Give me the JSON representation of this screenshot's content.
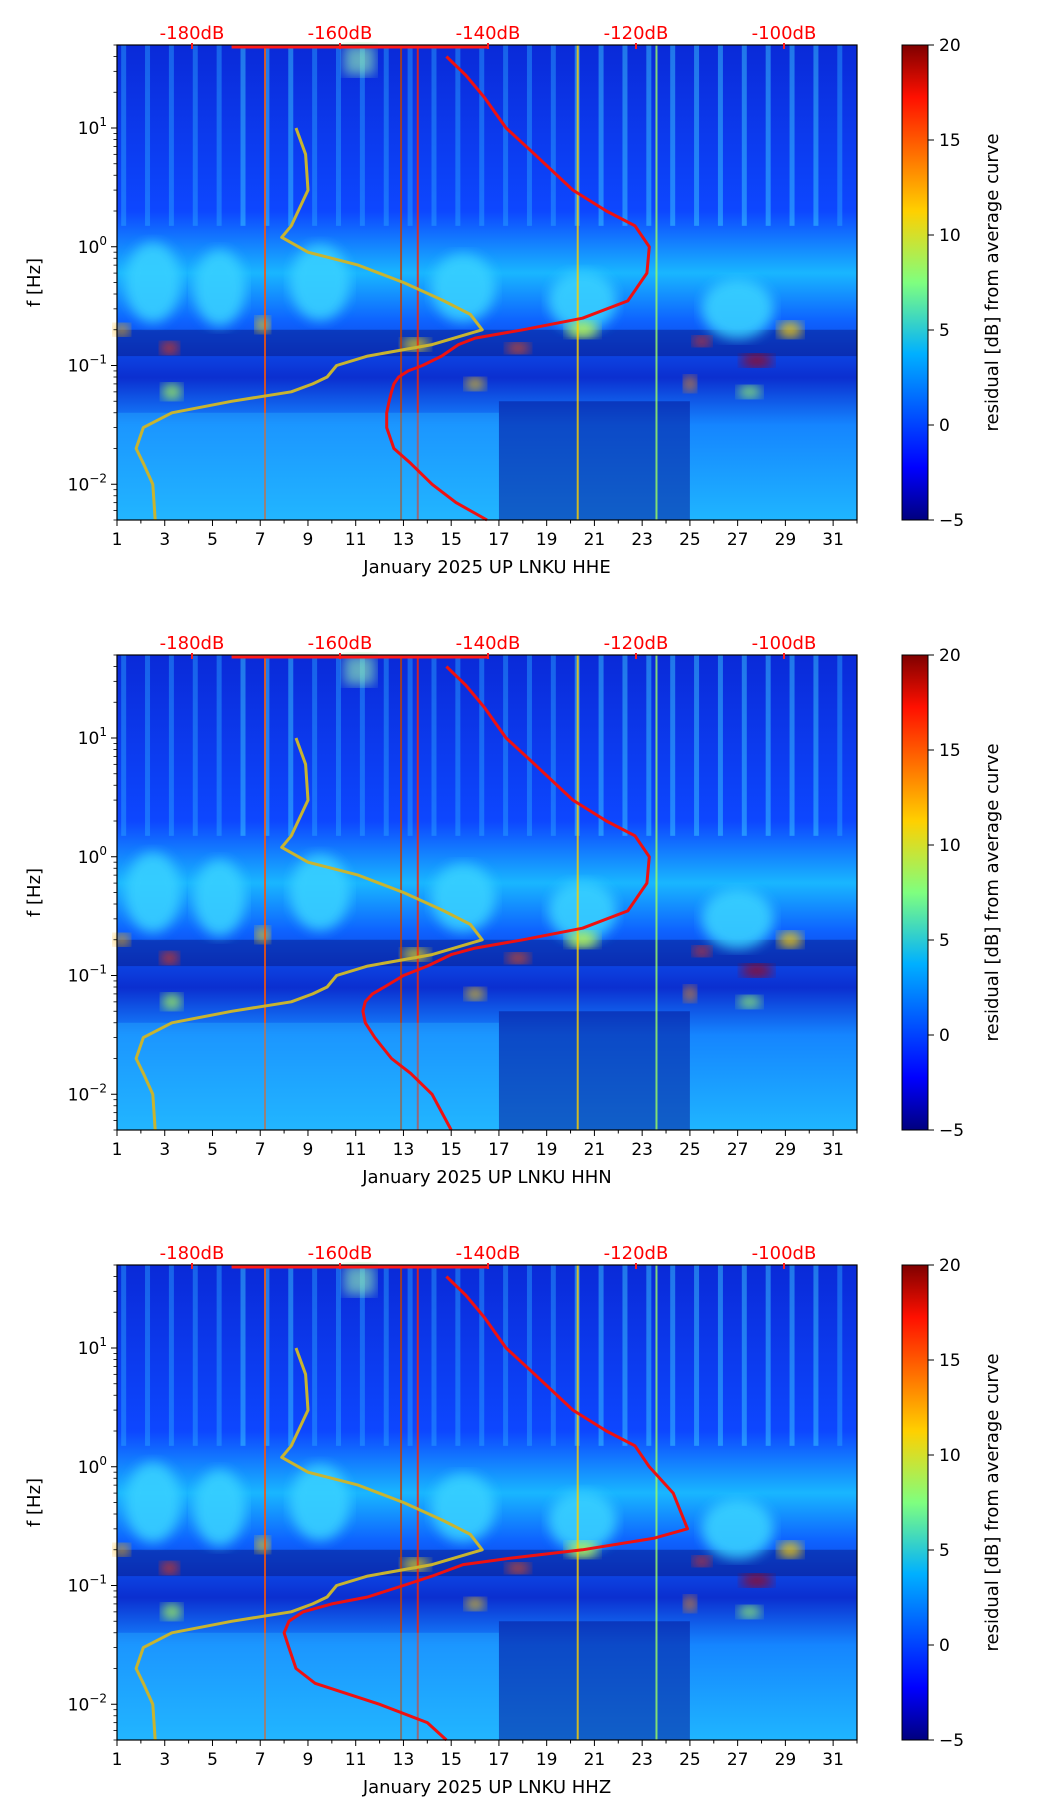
{
  "chart_data": [
    {
      "type": "heatmap",
      "title": "",
      "xlabel": "January 2025 UP LNKU  HHE",
      "ylabel": "f [Hz]",
      "x_ticks": [
        "1",
        "3",
        "5",
        "7",
        "9",
        "11",
        "13",
        "15",
        "17",
        "19",
        "21",
        "23",
        "25",
        "27",
        "29",
        "31"
      ],
      "x_range": [
        1,
        32
      ],
      "y_range_hz": [
        0.005,
        50
      ],
      "y_ticks": [
        {
          "exp": "1",
          "value": 10
        },
        {
          "exp": "0",
          "value": 1
        },
        {
          "exp": "−1",
          "value": 0.1
        },
        {
          "exp": "−2",
          "value": 0.01
        }
      ],
      "top_db_labels": [
        "-180dB",
        "-160dB",
        "-140dB",
        "-120dB",
        "-100dB"
      ],
      "colorbar": {
        "label": "residual [dB] from average curve",
        "ticks": [
          "20",
          "15",
          "10",
          "5",
          "0",
          "−5"
        ],
        "range": [
          -5,
          20
        ]
      },
      "series": [
        {
          "name": "average noise curve (red)",
          "x": [
            14.8,
            15.6,
            16.4,
            17.3,
            18.5,
            20.1,
            21.5,
            22.7,
            23.3,
            23.2,
            22.4,
            20.5,
            18.0,
            16.0,
            15.3,
            14.6,
            13.8,
            13.2,
            12.8,
            12.6,
            12.5,
            12.4,
            12.3,
            12.3,
            12.6,
            13.3,
            14.2,
            15.2,
            16.5
          ],
          "y_hz": [
            40,
            28,
            18,
            10,
            6,
            3,
            2,
            1.5,
            1,
            0.6,
            0.35,
            0.25,
            0.2,
            0.17,
            0.15,
            0.12,
            0.1,
            0.09,
            0.08,
            0.07,
            0.06,
            0.05,
            0.04,
            0.03,
            0.02,
            0.015,
            0.01,
            0.007,
            0.005
          ]
        },
        {
          "name": "noise model curve (yellow)",
          "x": [
            8.5,
            8.9,
            9.0,
            8.3,
            7.9,
            9.0,
            11.1,
            13.0,
            14.7,
            15.8,
            16.3,
            14.2,
            11.5,
            10.2,
            9.8,
            9.2,
            8.3,
            5.8,
            3.3,
            2.1,
            1.8,
            2.1,
            2.5,
            2.6
          ],
          "y_hz": [
            10,
            6,
            3,
            1.5,
            1.2,
            0.9,
            0.7,
            0.5,
            0.35,
            0.27,
            0.2,
            0.15,
            0.12,
            0.1,
            0.08,
            0.07,
            0.06,
            0.05,
            0.04,
            0.03,
            0.02,
            0.015,
            0.01,
            0.005
          ]
        }
      ]
    },
    {
      "type": "heatmap",
      "title": "",
      "xlabel": "January 2025 UP LNKU  HHN",
      "ylabel": "f [Hz]",
      "x_ticks": [
        "1",
        "3",
        "5",
        "7",
        "9",
        "11",
        "13",
        "15",
        "17",
        "19",
        "21",
        "23",
        "25",
        "27",
        "29",
        "31"
      ],
      "x_range": [
        1,
        32
      ],
      "y_range_hz": [
        0.005,
        50
      ],
      "y_ticks": [
        {
          "exp": "1",
          "value": 10
        },
        {
          "exp": "0",
          "value": 1
        },
        {
          "exp": "−1",
          "value": 0.1
        },
        {
          "exp": "−2",
          "value": 0.01
        }
      ],
      "top_db_labels": [
        "-180dB",
        "-160dB",
        "-140dB",
        "-120dB",
        "-100dB"
      ],
      "colorbar": {
        "label": "residual [dB] from average curve",
        "ticks": [
          "20",
          "15",
          "10",
          "5",
          "0",
          "−5"
        ],
        "range": [
          -5,
          20
        ]
      },
      "series": [
        {
          "name": "average noise curve (red)",
          "x": [
            14.8,
            15.6,
            16.4,
            17.3,
            18.5,
            20.1,
            21.5,
            22.7,
            23.3,
            23.2,
            22.4,
            20.5,
            18.0,
            16.0,
            15.0,
            14.0,
            13.0,
            12.2,
            11.7,
            11.4,
            11.3,
            11.4,
            11.8,
            12.5,
            13.3,
            14.2,
            15.0
          ],
          "y_hz": [
            40,
            28,
            18,
            10,
            6,
            3,
            2,
            1.5,
            1,
            0.6,
            0.35,
            0.25,
            0.2,
            0.17,
            0.15,
            0.12,
            0.1,
            0.08,
            0.07,
            0.06,
            0.05,
            0.04,
            0.03,
            0.02,
            0.015,
            0.01,
            0.005
          ]
        },
        {
          "name": "noise model curve (yellow)",
          "x": [
            8.5,
            8.9,
            9.0,
            8.3,
            7.9,
            9.0,
            11.1,
            13.0,
            14.7,
            15.8,
            16.3,
            14.2,
            11.5,
            10.2,
            9.8,
            9.2,
            8.3,
            5.8,
            3.3,
            2.1,
            1.8,
            2.1,
            2.5,
            2.6
          ],
          "y_hz": [
            10,
            6,
            3,
            1.5,
            1.2,
            0.9,
            0.7,
            0.5,
            0.35,
            0.27,
            0.2,
            0.15,
            0.12,
            0.1,
            0.08,
            0.07,
            0.06,
            0.05,
            0.04,
            0.03,
            0.02,
            0.015,
            0.01,
            0.005
          ]
        }
      ]
    },
    {
      "type": "heatmap",
      "title": "",
      "xlabel": "January 2025 UP LNKU  HHZ",
      "ylabel": "f [Hz]",
      "x_ticks": [
        "1",
        "3",
        "5",
        "7",
        "9",
        "11",
        "13",
        "15",
        "17",
        "19",
        "21",
        "23",
        "25",
        "27",
        "29",
        "31"
      ],
      "x_range": [
        1,
        32
      ],
      "y_range_hz": [
        0.005,
        50
      ],
      "y_ticks": [
        {
          "exp": "1",
          "value": 10
        },
        {
          "exp": "0",
          "value": 1
        },
        {
          "exp": "−1",
          "value": 0.1
        },
        {
          "exp": "−2",
          "value": 0.01
        }
      ],
      "top_db_labels": [
        "-180dB",
        "-160dB",
        "-140dB",
        "-120dB",
        "-100dB"
      ],
      "colorbar": {
        "label": "residual [dB] from average curve",
        "ticks": [
          "20",
          "15",
          "10",
          "5",
          "0",
          "−5"
        ],
        "range": [
          -5,
          20
        ]
      },
      "series": [
        {
          "name": "average noise curve (red)",
          "x": [
            14.8,
            15.6,
            16.4,
            17.3,
            18.5,
            20.1,
            21.5,
            22.7,
            23.3,
            24.3,
            24.9,
            23.5,
            20.5,
            17.5,
            15.5,
            14.2,
            13.0,
            11.5,
            10.0,
            8.8,
            8.2,
            8.0,
            8.2,
            8.5,
            9.3,
            12.0,
            14.0,
            14.8
          ],
          "y_hz": [
            40,
            28,
            18,
            10,
            6,
            3,
            2,
            1.5,
            1,
            0.6,
            0.3,
            0.25,
            0.2,
            0.17,
            0.15,
            0.12,
            0.1,
            0.08,
            0.07,
            0.06,
            0.05,
            0.04,
            0.03,
            0.02,
            0.015,
            0.01,
            0.007,
            0.005
          ]
        },
        {
          "name": "noise model curve (yellow)",
          "x": [
            8.5,
            8.9,
            9.0,
            8.3,
            7.9,
            9.0,
            11.1,
            13.0,
            14.7,
            15.8,
            16.3,
            14.2,
            11.5,
            10.2,
            9.8,
            9.2,
            8.3,
            5.8,
            3.3,
            2.1,
            1.8,
            2.1,
            2.5,
            2.6
          ],
          "y_hz": [
            10,
            6,
            3,
            1.5,
            1.2,
            0.9,
            0.7,
            0.5,
            0.35,
            0.27,
            0.2,
            0.15,
            0.12,
            0.1,
            0.08,
            0.07,
            0.06,
            0.05,
            0.04,
            0.03,
            0.02,
            0.015,
            0.01,
            0.005
          ]
        }
      ]
    }
  ]
}
